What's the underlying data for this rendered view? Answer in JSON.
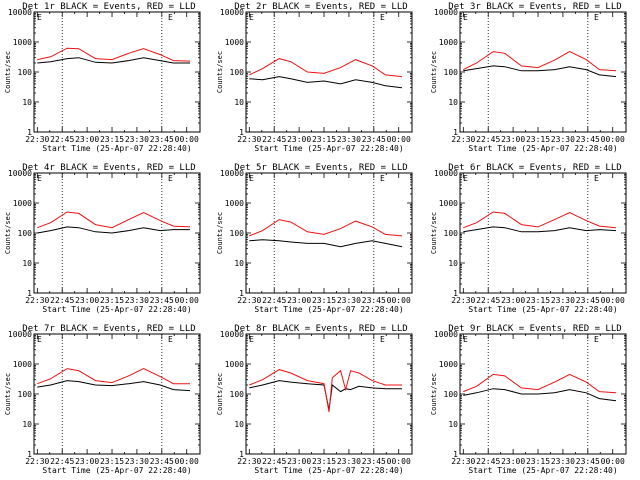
{
  "figure": {
    "x_axis_label": "Start Time (25-Apr-07 22:28:40)",
    "y_axis_label": "Counts/sec",
    "colors": {
      "black_series": "#000000",
      "red_series": "#ee1111",
      "background": "#ffffff"
    }
  },
  "chart_data": [
    {
      "type": "line",
      "title": "Det 1r BLACK = Events, RED = LLD",
      "xlabel": "Start Time (25-Apr-07 22:28:40)",
      "ylabel": "Counts/sec",
      "x_ticks": [
        "22:30",
        "22:45",
        "23:00",
        "23:15",
        "23:30",
        "23:45",
        "00:00"
      ],
      "y_ticks": [
        "1",
        "10",
        "100",
        "1000",
        "10000"
      ],
      "y_scale": "log",
      "ylim": [
        1,
        10000
      ],
      "vlines": [
        "22:45",
        "23:45"
      ],
      "marker": "E",
      "x": [
        "22:30",
        "22:38",
        "22:48",
        "22:55",
        "23:05",
        "23:15",
        "23:25",
        "23:34",
        "23:44",
        "23:52",
        "00:02"
      ],
      "series": [
        {
          "name": "Events",
          "color": "black",
          "values": [
            200,
            220,
            280,
            300,
            210,
            200,
            240,
            300,
            240,
            200,
            200
          ]
        },
        {
          "name": "LLD",
          "color": "red",
          "values": [
            260,
            320,
            620,
            600,
            280,
            260,
            420,
            600,
            380,
            240,
            230
          ]
        }
      ]
    },
    {
      "type": "line",
      "title": "Det 2r BLACK = Events, RED = LLD",
      "xlabel": "Start Time (25-Apr-07 22:28:40)",
      "ylabel": "Counts/sec",
      "x_ticks": [
        "22:30",
        "22:45",
        "23:00",
        "23:15",
        "23:30",
        "23:45",
        "00:00"
      ],
      "y_ticks": [
        "1",
        "10",
        "100",
        "1000",
        "10000"
      ],
      "y_scale": "log",
      "ylim": [
        1,
        10000
      ],
      "vlines": [
        "22:45",
        "23:45"
      ],
      "marker": "E",
      "x": [
        "22:30",
        "22:38",
        "22:48",
        "22:55",
        "23:05",
        "23:15",
        "23:25",
        "23:34",
        "23:44",
        "23:52",
        "00:02"
      ],
      "series": [
        {
          "name": "Events",
          "color": "black",
          "values": [
            60,
            55,
            70,
            60,
            45,
            50,
            40,
            55,
            45,
            35,
            30
          ]
        },
        {
          "name": "LLD",
          "color": "red",
          "values": [
            80,
            130,
            280,
            220,
            100,
            90,
            140,
            260,
            160,
            80,
            70
          ]
        }
      ]
    },
    {
      "type": "line",
      "title": "Det 3r BLACK = Events, RED = LLD",
      "xlabel": "Start Time (25-Apr-07 22:28:40)",
      "ylabel": "Counts/sec",
      "x_ticks": [
        "22:30",
        "22:45",
        "23:00",
        "23:15",
        "23:30",
        "23:45",
        "00:00"
      ],
      "y_ticks": [
        "1",
        "10",
        "100",
        "1000",
        "10000"
      ],
      "y_scale": "log",
      "ylim": [
        1,
        10000
      ],
      "vlines": [
        "22:45",
        "23:45"
      ],
      "marker": "E",
      "x": [
        "22:30",
        "22:38",
        "22:48",
        "22:55",
        "23:05",
        "23:15",
        "23:25",
        "23:34",
        "23:44",
        "23:52",
        "00:02"
      ],
      "series": [
        {
          "name": "Events",
          "color": "black",
          "values": [
            110,
            130,
            160,
            150,
            110,
            110,
            120,
            150,
            120,
            80,
            70
          ]
        },
        {
          "name": "LLD",
          "color": "red",
          "values": [
            120,
            200,
            480,
            420,
            160,
            140,
            250,
            480,
            260,
            120,
            110
          ]
        }
      ]
    },
    {
      "type": "line",
      "title": "Det 4r BLACK = Events, RED = LLD",
      "xlabel": "Start Time (25-Apr-07 22:28:40)",
      "ylabel": "Counts/sec",
      "x_ticks": [
        "22:30",
        "22:45",
        "23:00",
        "23:15",
        "23:30",
        "23:45",
        "00:00"
      ],
      "y_ticks": [
        "1",
        "10",
        "100",
        "1000",
        "10000"
      ],
      "y_scale": "log",
      "ylim": [
        1,
        10000
      ],
      "vlines": [
        "22:45",
        "23:45"
      ],
      "marker": "E",
      "x": [
        "22:30",
        "22:38",
        "22:48",
        "22:55",
        "23:05",
        "23:15",
        "23:25",
        "23:34",
        "23:44",
        "23:52",
        "00:02"
      ],
      "series": [
        {
          "name": "Events",
          "color": "black",
          "values": [
            100,
            120,
            160,
            150,
            110,
            100,
            120,
            150,
            120,
            130,
            130
          ]
        },
        {
          "name": "LLD",
          "color": "red",
          "values": [
            150,
            220,
            500,
            450,
            190,
            150,
            280,
            480,
            260,
            170,
            160
          ]
        }
      ]
    },
    {
      "type": "line",
      "title": "Det 5r BLACK = Events, RED = LLD",
      "xlabel": "Start Time (25-Apr-07 22:28:40)",
      "ylabel": "Counts/sec",
      "x_ticks": [
        "22:30",
        "22:45",
        "23:00",
        "23:15",
        "23:30",
        "23:45",
        "00:00"
      ],
      "y_ticks": [
        "1",
        "10",
        "100",
        "1000",
        "10000"
      ],
      "y_scale": "log",
      "ylim": [
        1,
        10000
      ],
      "vlines": [
        "22:45",
        "23:45"
      ],
      "marker": "E",
      "x": [
        "22:30",
        "22:38",
        "22:48",
        "22:55",
        "23:05",
        "23:15",
        "23:25",
        "23:34",
        "23:44",
        "23:52",
        "00:02"
      ],
      "series": [
        {
          "name": "Events",
          "color": "black",
          "values": [
            55,
            60,
            55,
            50,
            45,
            45,
            35,
            45,
            55,
            45,
            35
          ]
        },
        {
          "name": "LLD",
          "color": "red",
          "values": [
            80,
            120,
            280,
            230,
            110,
            90,
            140,
            250,
            160,
            90,
            80
          ]
        }
      ]
    },
    {
      "type": "line",
      "title": "Det 6r BLACK = Events, RED = LLD",
      "xlabel": "Start Time (25-Apr-07 22:28:40)",
      "ylabel": "Counts/sec",
      "x_ticks": [
        "22:30",
        "22:45",
        "23:00",
        "23:15",
        "23:30",
        "23:45",
        "00:00"
      ],
      "y_ticks": [
        "1",
        "10",
        "100",
        "1000",
        "10000"
      ],
      "y_scale": "log",
      "ylim": [
        1,
        10000
      ],
      "vlines": [
        "22:45",
        "23:45"
      ],
      "marker": "E",
      "x": [
        "22:30",
        "22:38",
        "22:48",
        "22:55",
        "23:05",
        "23:15",
        "23:25",
        "23:34",
        "23:44",
        "23:52",
        "00:02"
      ],
      "series": [
        {
          "name": "Events",
          "color": "black",
          "values": [
            110,
            130,
            160,
            150,
            110,
            110,
            120,
            150,
            120,
            130,
            120
          ]
        },
        {
          "name": "LLD",
          "color": "red",
          "values": [
            150,
            220,
            500,
            450,
            190,
            160,
            280,
            480,
            260,
            170,
            150
          ]
        }
      ]
    },
    {
      "type": "line",
      "title": "Det 7r BLACK = Events, RED = LLD",
      "xlabel": "Start Time (25-Apr-07 22:28:40)",
      "ylabel": "Counts/sec",
      "x_ticks": [
        "22:30",
        "22:45",
        "23:00",
        "23:15",
        "23:30",
        "23:45",
        "00:00"
      ],
      "y_ticks": [
        "1",
        "10",
        "100",
        "1000",
        "10000"
      ],
      "y_scale": "log",
      "ylim": [
        1,
        10000
      ],
      "vlines": [
        "22:45",
        "23:45"
      ],
      "marker": "E",
      "x": [
        "22:30",
        "22:38",
        "22:48",
        "22:55",
        "23:05",
        "23:15",
        "23:25",
        "23:34",
        "23:44",
        "23:52",
        "00:02"
      ],
      "series": [
        {
          "name": "Events",
          "color": "black",
          "values": [
            170,
            200,
            280,
            260,
            200,
            190,
            220,
            260,
            200,
            140,
            130
          ]
        },
        {
          "name": "LLD",
          "color": "red",
          "values": [
            220,
            320,
            700,
            600,
            280,
            240,
            400,
            700,
            380,
            220,
            220
          ]
        }
      ]
    },
    {
      "type": "line",
      "title": "Det 8r BLACK = Events, RED = LLD",
      "xlabel": "Start Time (25-Apr-07 22:28:40)",
      "ylabel": "Counts/sec",
      "x_ticks": [
        "22:30",
        "22:45",
        "23:00",
        "23:15",
        "23:30",
        "23:45",
        "00:00"
      ],
      "y_ticks": [
        "1",
        "10",
        "100",
        "1000",
        "10000"
      ],
      "y_scale": "log",
      "ylim": [
        1,
        10000
      ],
      "vlines": [
        "22:45",
        "23:45"
      ],
      "marker": "E",
      "x": [
        "22:30",
        "22:38",
        "22:48",
        "22:55",
        "23:05",
        "23:15",
        "23:18",
        "23:20",
        "23:25",
        "23:28",
        "23:31",
        "23:36",
        "23:44",
        "23:52",
        "00:02"
      ],
      "series": [
        {
          "name": "Events",
          "color": "black",
          "values": [
            160,
            200,
            280,
            250,
            220,
            200,
            30,
            200,
            120,
            150,
            140,
            180,
            160,
            150,
            150
          ]
        },
        {
          "name": "LLD",
          "color": "red",
          "values": [
            200,
            300,
            650,
            500,
            280,
            220,
            25,
            350,
            600,
            140,
            600,
            500,
            280,
            200,
            200
          ]
        }
      ]
    },
    {
      "type": "line",
      "title": "Det 9r BLACK = Events, RED = LLD",
      "xlabel": "Start Time (25-Apr-07 22:28:40)",
      "ylabel": "Counts/sec",
      "x_ticks": [
        "22:30",
        "22:45",
        "23:00",
        "23:15",
        "23:30",
        "23:45",
        "00:00"
      ],
      "y_ticks": [
        "1",
        "10",
        "100",
        "1000",
        "10000"
      ],
      "y_scale": "log",
      "ylim": [
        1,
        10000
      ],
      "vlines": [
        "22:45",
        "23:45"
      ],
      "marker": "E",
      "x": [
        "22:30",
        "22:38",
        "22:48",
        "22:55",
        "23:05",
        "23:15",
        "23:25",
        "23:34",
        "23:44",
        "23:52",
        "00:02"
      ],
      "series": [
        {
          "name": "Events",
          "color": "black",
          "values": [
            90,
            110,
            150,
            140,
            100,
            100,
            110,
            140,
            110,
            70,
            60
          ]
        },
        {
          "name": "LLD",
          "color": "red",
          "values": [
            120,
            180,
            450,
            400,
            160,
            140,
            250,
            450,
            250,
            120,
            110
          ]
        }
      ]
    }
  ]
}
